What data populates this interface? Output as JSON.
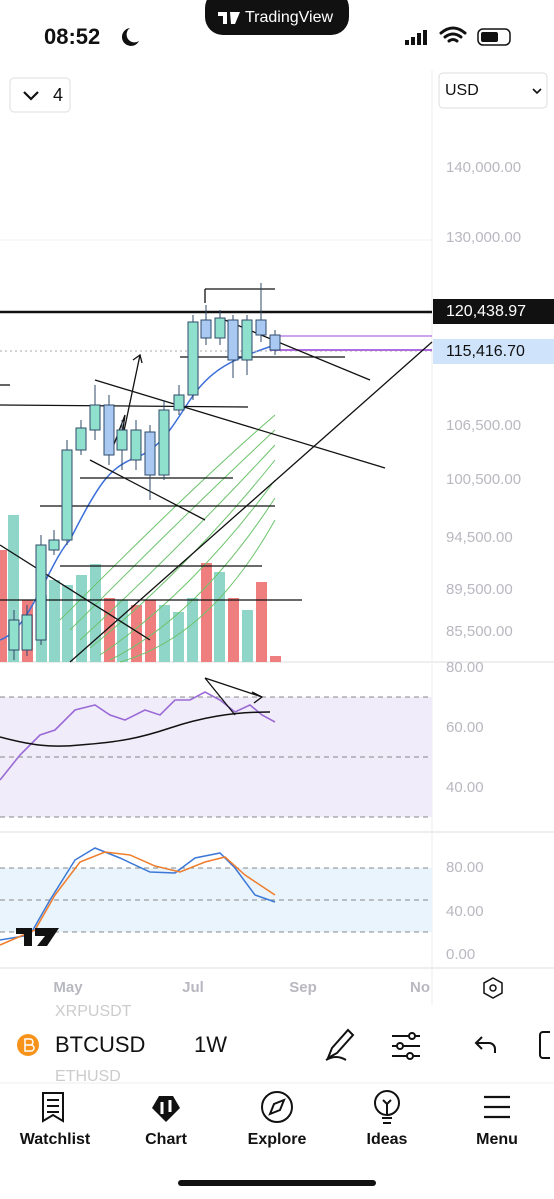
{
  "status_bar": {
    "time": "08:52",
    "app": "TradingView"
  },
  "toolbar": {
    "layout_count": "4",
    "currency": "USD"
  },
  "price_axis": {
    "labels": [
      "140,000.00",
      "130,000.00",
      "106,500.00",
      "100,500.00",
      "94,500.00",
      "89,500.00",
      "85,500.00"
    ],
    "last_price": "120,438.97",
    "marker_price": "115,416.70"
  },
  "rsi_axis": [
    "80.00",
    "60.00",
    "40.00"
  ],
  "stoch_axis": [
    "80.00",
    "40.00",
    "0.00"
  ],
  "time_axis": [
    "May",
    "Jul",
    "Sep",
    "No"
  ],
  "symbol_bar": {
    "symbol": "BTCUSD",
    "interval": "1W",
    "prev_symbol": "XRPUSDT",
    "next_symbol": "ETHUSD"
  },
  "nav": [
    "Watchlist",
    "Chart",
    "Explore",
    "Ideas",
    "Menu"
  ]
}
